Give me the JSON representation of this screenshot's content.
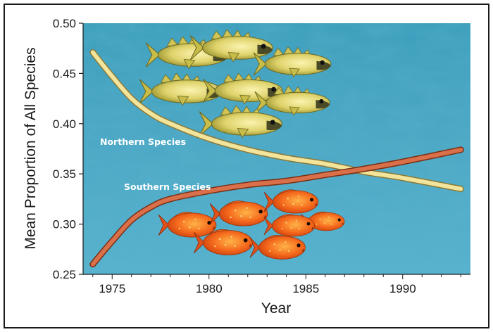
{
  "chart_data": {
    "type": "line",
    "title": "",
    "xlabel": "Year",
    "ylabel": "Mean Proportion of All Species",
    "xlim": [
      1973.5,
      1993.5
    ],
    "ylim": [
      0.25,
      0.5
    ],
    "x_ticks": [
      "1975",
      "1980",
      "1985",
      "1990"
    ],
    "x_tick_values": [
      1975,
      1980,
      1985,
      1990
    ],
    "y_ticks": [
      "0.25",
      "0.30",
      "0.35",
      "0.40",
      "0.45",
      "0.50"
    ],
    "y_tick_values": [
      0.25,
      0.3,
      0.35,
      0.4,
      0.45,
      0.5
    ],
    "grid": false,
    "background": "ocean water photograph",
    "series": [
      {
        "name": "Northern Species",
        "color": "#f2e49a",
        "x": [
          1974,
          1975,
          1976,
          1977,
          1978,
          1980,
          1982,
          1984,
          1986,
          1988,
          1990,
          1993
        ],
        "values": [
          0.471,
          0.447,
          0.425,
          0.41,
          0.4,
          0.385,
          0.374,
          0.366,
          0.36,
          0.352,
          0.346,
          0.335
        ]
      },
      {
        "name": "Southern Species",
        "color": "#d9704a",
        "x": [
          1974,
          1975,
          1976,
          1977,
          1978,
          1980,
          1982,
          1984,
          1986,
          1988,
          1990,
          1993
        ],
        "values": [
          0.26,
          0.283,
          0.304,
          0.317,
          0.325,
          0.333,
          0.339,
          0.343,
          0.349,
          0.355,
          0.362,
          0.374
        ]
      }
    ],
    "illustrations": [
      {
        "name": "northern-fish-school",
        "color": "#d8cc55"
      },
      {
        "name": "southern-fish-school",
        "color": "#ee5a1e"
      }
    ]
  }
}
